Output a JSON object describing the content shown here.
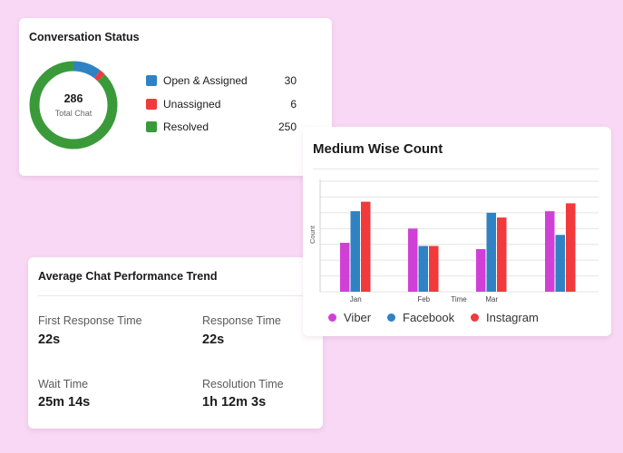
{
  "conversation_status": {
    "title": "Conversation Status",
    "total": "286",
    "total_label": "Total Chat",
    "items": [
      {
        "label": "Open & Assigned",
        "value": 30,
        "color": "#2f82c4"
      },
      {
        "label": "Unassigned",
        "value": 6,
        "color": "#f2393c"
      },
      {
        "label": "Resolved",
        "value": 250,
        "color": "#3a9a3a"
      }
    ]
  },
  "performance": {
    "title": "Average Chat Performance Trend",
    "metrics": [
      {
        "label": "First Response Time",
        "value": "22s"
      },
      {
        "label": "Response Time",
        "value": "22s"
      },
      {
        "label": "Wait Time",
        "value": "25m 14s"
      },
      {
        "label": "Resolution Time",
        "value": "1h 12m 3s"
      }
    ]
  },
  "chart_data": {
    "type": "bar",
    "title": "Medium Wise Count",
    "xlabel": "Time",
    "ylabel": "Count",
    "categories": [
      "Jan",
      "Feb",
      "Mar",
      ""
    ],
    "ylim": [
      0,
      7
    ],
    "grid": true,
    "legend_position": "bottom",
    "series": [
      {
        "name": "Viber",
        "color": "#d040d6",
        "values": [
          3.1,
          4.0,
          2.7,
          5.1
        ]
      },
      {
        "name": "Facebook",
        "color": "#2f82c4",
        "values": [
          5.1,
          2.9,
          5.0,
          3.6
        ]
      },
      {
        "name": "Instagram",
        "color": "#f2393c",
        "values": [
          5.7,
          2.9,
          4.7,
          5.6
        ]
      }
    ]
  }
}
